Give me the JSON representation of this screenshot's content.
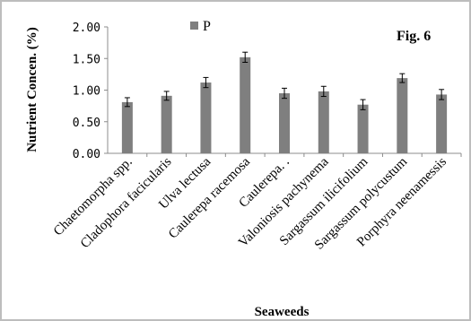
{
  "chart_data": {
    "type": "bar",
    "figure_label": "Fig. 6",
    "ylabel": "Nutrient Concen. (%)",
    "xlabel": "Seaweeds",
    "ylim": [
      0,
      2.0
    ],
    "yticks": [
      "2.00",
      "1.50",
      "1.00",
      "0.50",
      "0.00"
    ],
    "ytick_values": [
      2.0,
      1.5,
      1.0,
      0.5,
      0.0
    ],
    "legend_position": "top-left",
    "categories": [
      "Chaetomorpha spp.",
      "Cladophora facicularis",
      "Ulva lectusa",
      "Caulerepa racemosa",
      "Caulerepa. .",
      "Valoniosis pachynema",
      "Sargassum ilicifolium",
      "Sargassum polycustum",
      "Porphyra neenamessis"
    ],
    "series": [
      {
        "name": "P",
        "color": "#7f7f7f",
        "values": [
          0.81,
          0.91,
          1.12,
          1.52,
          0.95,
          0.98,
          0.77,
          1.19,
          0.93
        ],
        "errors": [
          0.07,
          0.07,
          0.08,
          0.08,
          0.08,
          0.08,
          0.08,
          0.07,
          0.08
        ]
      }
    ]
  }
}
